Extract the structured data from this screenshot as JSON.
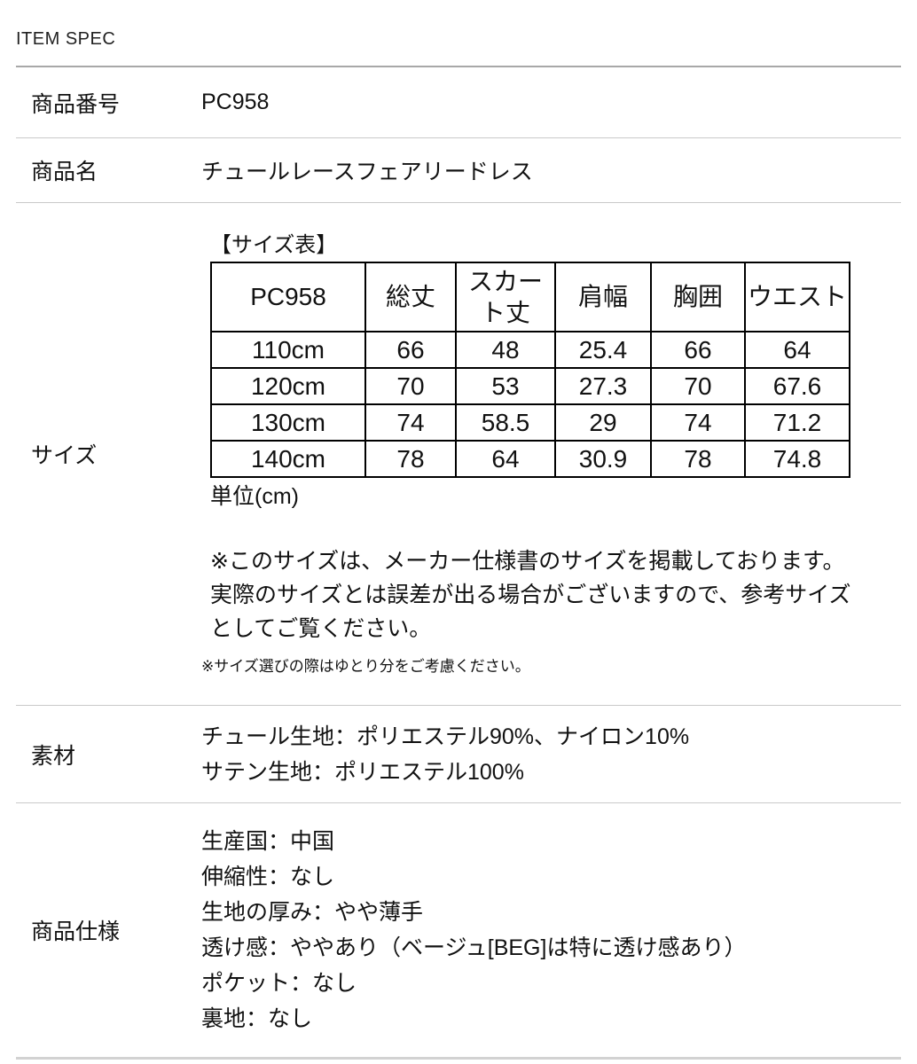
{
  "header": {
    "title": "ITEM SPEC"
  },
  "rows": {
    "product_number": {
      "label": "商品番号",
      "value": "PC958"
    },
    "product_name": {
      "label": "商品名",
      "value": "チュールレースフェアリードレス"
    }
  },
  "size_section": {
    "label": "サイズ",
    "table_title": "【サイズ表】",
    "table": {
      "columns": [
        "PC958",
        "総丈",
        "スカート丈",
        "肩幅",
        "胸囲",
        "ウエスト"
      ],
      "rows": [
        [
          "110cm",
          "66",
          "48",
          "25.4",
          "66",
          "64"
        ],
        [
          "120cm",
          "70",
          "53",
          "27.3",
          "70",
          "67.6"
        ],
        [
          "130cm",
          "74",
          "58.5",
          "29",
          "74",
          "71.2"
        ],
        [
          "140cm",
          "78",
          "64",
          "30.9",
          "78",
          "74.8"
        ]
      ]
    },
    "unit_note": "単位(cm)",
    "note_lines": [
      "※このサイズは、メーカー仕様書のサイズを掲載しております。",
      "実際のサイズとは誤差が出る場合がございますので、参考サイズ",
      "としてご覧ください。"
    ],
    "small_note": "※サイズ選びの際はゆとり分をご考慮ください。"
  },
  "material_section": {
    "label": "素材",
    "lines": [
      "チュール生地：ポリエステル90%、ナイロン10%",
      "サテン生地：ポリエステル100%"
    ]
  },
  "spec_section": {
    "label": "商品仕様",
    "lines": [
      "生産国：中国",
      "伸縮性：なし",
      "生地の厚み：やや薄手",
      "透け感：ややあり（ベージュ[BEG]は特に透け感あり）",
      "ポケット：なし",
      "裏地：なし"
    ]
  },
  "colors": {
    "text": "#111111",
    "divider": "#c9c9c9",
    "header_divider": "#a8a8a8",
    "table_border": "#000000"
  }
}
